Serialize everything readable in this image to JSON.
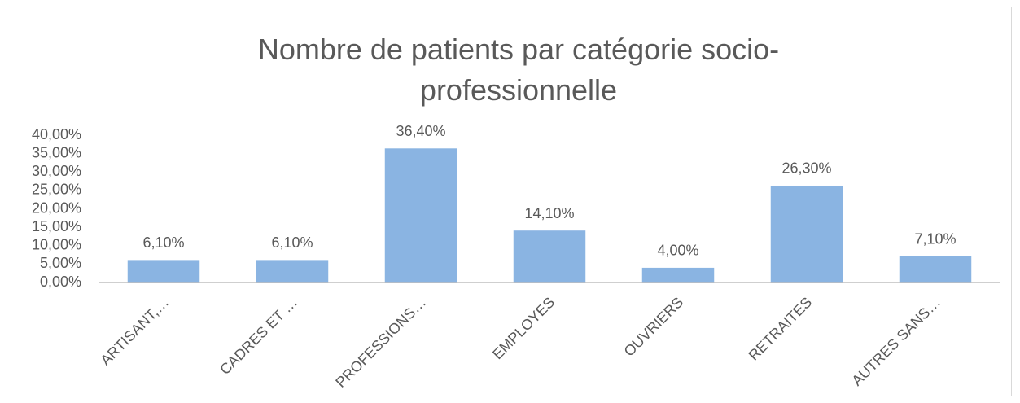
{
  "chart_data": {
    "type": "bar",
    "title": "Nombre de patients par catégorie socio-professionnelle",
    "categories": [
      "ARTISANT,…",
      "CADRES ET …",
      "PROFESSIONS…",
      "EMPLOYES",
      "OUVRIERS",
      "RETRAITES",
      "AUTRES SANS…"
    ],
    "values": [
      6.1,
      6.1,
      36.4,
      14.1,
      4.0,
      26.3,
      7.1
    ],
    "value_labels": [
      "6,10%",
      "6,10%",
      "36,40%",
      "14,10%",
      "4,00%",
      "26,30%",
      "7,10%"
    ],
    "color": "#8ab4e2",
    "ylim": [
      0,
      40
    ],
    "yticks": [
      {
        "value": 0,
        "label": "0,00%"
      },
      {
        "value": 5,
        "label": "5,00%"
      },
      {
        "value": 10,
        "label": "10,00%"
      },
      {
        "value": 15,
        "label": "15,00%"
      },
      {
        "value": 20,
        "label": "20,00%"
      },
      {
        "value": 25,
        "label": "25,00%"
      },
      {
        "value": 30,
        "label": "30,00%"
      },
      {
        "value": 35,
        "label": "35,00%"
      },
      {
        "value": 40,
        "label": "40,00%"
      }
    ],
    "grid": false
  }
}
